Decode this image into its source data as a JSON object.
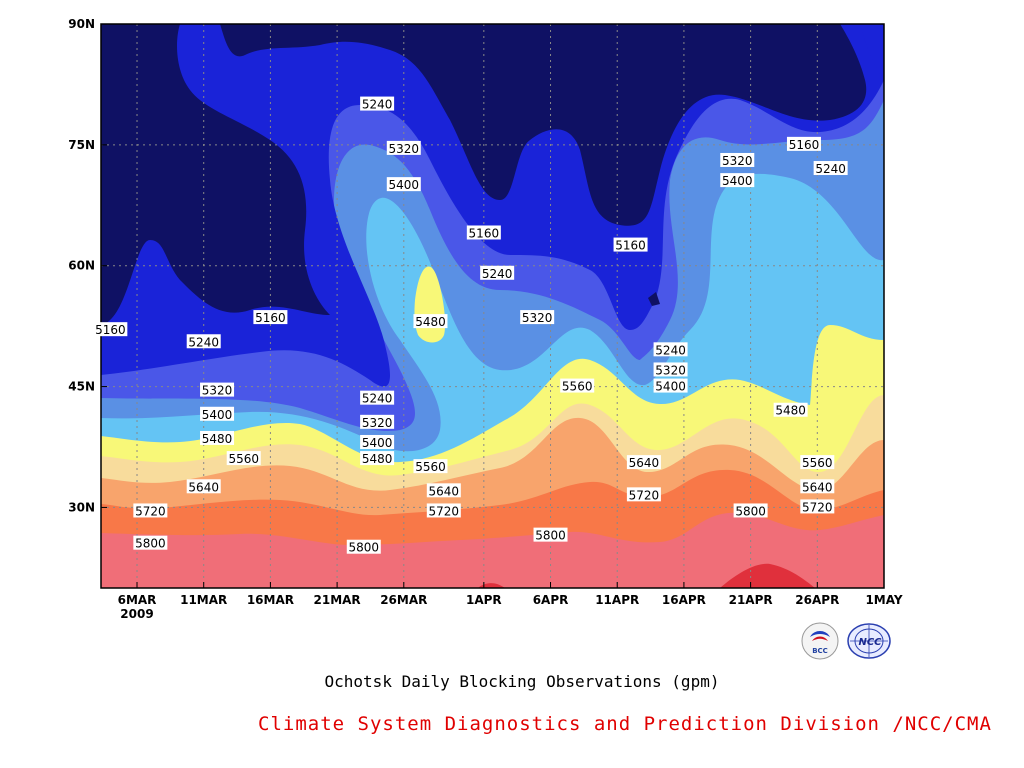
{
  "chart_data": {
    "type": "contour",
    "title": "Ochotsk Daily Blocking Observations (gpm)",
    "source": "Climate System Diagnostics and Prediction Division /NCC/CMA",
    "x_ticks": [
      "6MAR",
      "11MAR",
      "16MAR",
      "21MAR",
      "26MAR",
      "1APR",
      "6APR",
      "11APR",
      "16APR",
      "21APR",
      "26APR",
      "1MAY"
    ],
    "x_year_label": "2009",
    "y_ticks": [
      "90N",
      "75N",
      "60N",
      "45N",
      "30N"
    ],
    "y_range": [
      20,
      90
    ],
    "contour_levels": [
      5160,
      5240,
      5320,
      5400,
      5480,
      5560,
      5640,
      5720,
      5800,
      5880
    ],
    "contour_labels": [
      {
        "value": "5240",
        "x": "21MAR+3",
        "lat": 80
      },
      {
        "value": "5320",
        "x": "21MAR+5",
        "lat": 74.5
      },
      {
        "value": "5400",
        "x": "26MAR",
        "lat": 70
      },
      {
        "value": "5160",
        "x": "1APR",
        "lat": 64
      },
      {
        "value": "5240",
        "x": "1APR+1",
        "lat": 59
      },
      {
        "value": "5160",
        "x": "11APR+1",
        "lat": 62.5
      },
      {
        "value": "5320",
        "x": "21APR-1",
        "lat": 73
      },
      {
        "value": "5400",
        "x": "21APR-1",
        "lat": 70.5
      },
      {
        "value": "5160",
        "x": "26APR-1",
        "lat": 75
      },
      {
        "value": "5240",
        "x": "26APR+1",
        "lat": 72
      },
      {
        "value": "5160",
        "x": "6MAR-2",
        "lat": 52
      },
      {
        "value": "5240",
        "x": "11MAR",
        "lat": 50.5
      },
      {
        "value": "5160",
        "x": "16MAR",
        "lat": 53.5
      },
      {
        "value": "5480",
        "x": "26MAR+2",
        "lat": 53
      },
      {
        "value": "5320",
        "x": "6APR-1",
        "lat": 53.5
      },
      {
        "value": "5240",
        "x": "16APR-1",
        "lat": 49.5
      },
      {
        "value": "5320",
        "x": "16APR-1",
        "lat": 47
      },
      {
        "value": "5400",
        "x": "16APR-1",
        "lat": 45
      },
      {
        "value": "5560",
        "x": "11APR-3",
        "lat": 45
      },
      {
        "value": "5480",
        "x": "26APR-2",
        "lat": 42
      },
      {
        "value": "5320",
        "x": "11MAR+1",
        "lat": 44.5
      },
      {
        "value": "5400",
        "x": "11MAR+1",
        "lat": 41.5
      },
      {
        "value": "5480",
        "x": "11MAR+1",
        "lat": 38.5
      },
      {
        "value": "5560",
        "x": "16MAR-2",
        "lat": 36
      },
      {
        "value": "5640",
        "x": "11MAR",
        "lat": 32.5
      },
      {
        "value": "5720",
        "x": "6MAR+1",
        "lat": 29.5
      },
      {
        "value": "5800",
        "x": "6MAR+1",
        "lat": 25.5
      },
      {
        "value": "5240",
        "x": "21MAR+3",
        "lat": 43.5
      },
      {
        "value": "5320",
        "x": "21MAR+3",
        "lat": 40.5
      },
      {
        "value": "5400",
        "x": "26MAR-2",
        "lat": 38
      },
      {
        "value": "5480",
        "x": "26MAR-2",
        "lat": 36
      },
      {
        "value": "5560",
        "x": "26MAR+2",
        "lat": 35
      },
      {
        "value": "5640",
        "x": "1APR-3",
        "lat": 32
      },
      {
        "value": "5720",
        "x": "1APR-3",
        "lat": 29.5
      },
      {
        "value": "5800",
        "x": "21MAR+2",
        "lat": 25
      },
      {
        "value": "5800",
        "x": "6APR",
        "lat": 26.5
      },
      {
        "value": "5640",
        "x": "11APR+2",
        "lat": 35.5
      },
      {
        "value": "5720",
        "x": "11APR+2",
        "lat": 31.5
      },
      {
        "value": "5800",
        "x": "21APR",
        "lat": 29.5
      },
      {
        "value": "5560",
        "x": "26APR",
        "lat": 35.5
      },
      {
        "value": "5640",
        "x": "26APR",
        "lat": 32.5
      },
      {
        "value": "5720",
        "x": "26APR",
        "lat": 30
      }
    ]
  },
  "colors": {
    "band_lt_5160": "#0f1164",
    "band_5160_5240": "#1a23d8",
    "band_5240_5320": "#4a57e8",
    "band_5320_5400": "#5a90e4",
    "band_5400_5480": "#64c4f4",
    "band_5480_5560": "#f8f878",
    "band_5560_5640": "#f8dc9c",
    "band_5640_5720": "#f8a46c",
    "band_5720_5800": "#f87848",
    "band_5800_5880": "#f06e78",
    "band_gt_5880": "#e0303c"
  },
  "logos": [
    {
      "name": "bcc-logo",
      "text": "BCC"
    },
    {
      "name": "ncc-logo",
      "text": "NCC"
    }
  ]
}
